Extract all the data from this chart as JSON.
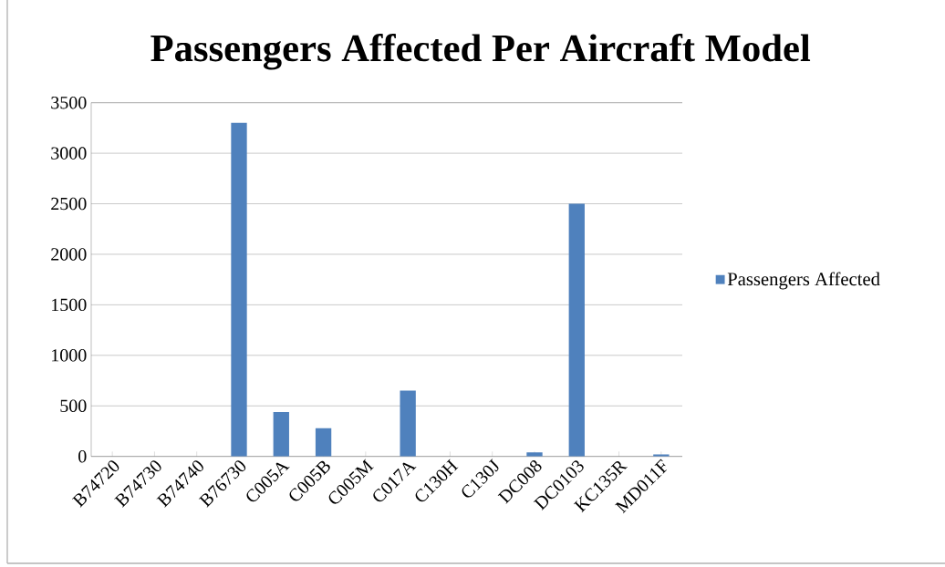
{
  "chart_data": {
    "type": "bar",
    "title": "Passengers Affected Per Aircraft Model",
    "categories": [
      "B74720",
      "B74730",
      "B74740",
      "B76730",
      "C005A",
      "C005B",
      "C005M",
      "C017A",
      "C130H",
      "C130J",
      "DC008",
      "DC0103",
      "KC135R",
      "MD011F"
    ],
    "series": [
      {
        "name": "Passengers Affected",
        "color": "#4f81bd",
        "values": [
          0,
          0,
          0,
          3300,
          440,
          280,
          0,
          650,
          0,
          0,
          40,
          2500,
          0,
          20
        ]
      }
    ],
    "ylim": [
      0,
      3500
    ],
    "yticks": [
      0,
      500,
      1000,
      1500,
      2000,
      2500,
      3000,
      3500
    ],
    "grid": "y",
    "legend": "right"
  }
}
